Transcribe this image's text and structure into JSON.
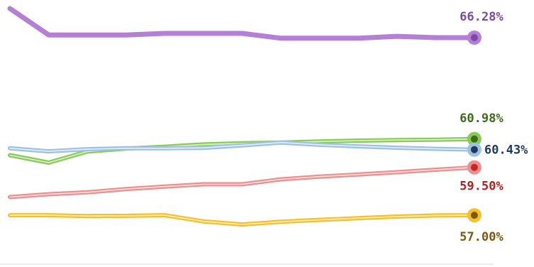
{
  "chart_data": {
    "type": "line",
    "title": "",
    "xlabel": "",
    "ylabel": "",
    "x": [
      1,
      2,
      3,
      4,
      5,
      6,
      7,
      8,
      9,
      10,
      11,
      12,
      13
    ],
    "ylim": [
      56.3,
      67.8
    ],
    "grid": false,
    "legend": "none",
    "series": [
      {
        "key": "purple",
        "color": "#b57fd6",
        "dot": "#7b4aa4",
        "label_color": "#7b4aa4",
        "end_label": "66.28%",
        "values": [
          67.8,
          66.42,
          66.42,
          66.42,
          66.5,
          66.5,
          66.5,
          66.25,
          66.25,
          66.25,
          66.35,
          66.28,
          66.28
        ]
      },
      {
        "key": "green",
        "color": "#88cc55",
        "dot": "#3e6b1e",
        "label_color": "#3e6b1e",
        "end_label": "60.98%",
        "values": [
          60.14,
          59.75,
          60.33,
          60.48,
          60.58,
          60.7,
          60.76,
          60.8,
          60.85,
          60.9,
          60.93,
          60.95,
          60.98
        ]
      },
      {
        "key": "blue",
        "color": "#9dc1e3",
        "dot": "#1f3a5f",
        "label_color": "#1f3a5f",
        "end_label": "60.43%",
        "values": [
          60.5,
          60.34,
          60.45,
          60.5,
          60.5,
          60.52,
          60.65,
          60.8,
          60.68,
          60.6,
          60.53,
          60.47,
          60.43
        ]
      },
      {
        "key": "red",
        "color": "#ec8f8f",
        "dot": "#c62828",
        "label_color": "#b22222",
        "end_label": "59.50%",
        "values": [
          57.95,
          58.1,
          58.2,
          58.37,
          58.5,
          58.62,
          58.62,
          58.88,
          59.02,
          59.13,
          59.25,
          59.38,
          59.5
        ]
      },
      {
        "key": "yellow",
        "color": "#f5c02a",
        "dot": "#7a5a10",
        "label_color": "#7a5a10",
        "end_label": "57.00%",
        "values": [
          57.0,
          57.0,
          56.96,
          56.97,
          57.0,
          56.68,
          56.52,
          56.66,
          56.76,
          56.85,
          56.93,
          56.99,
          57.0
        ]
      }
    ]
  }
}
